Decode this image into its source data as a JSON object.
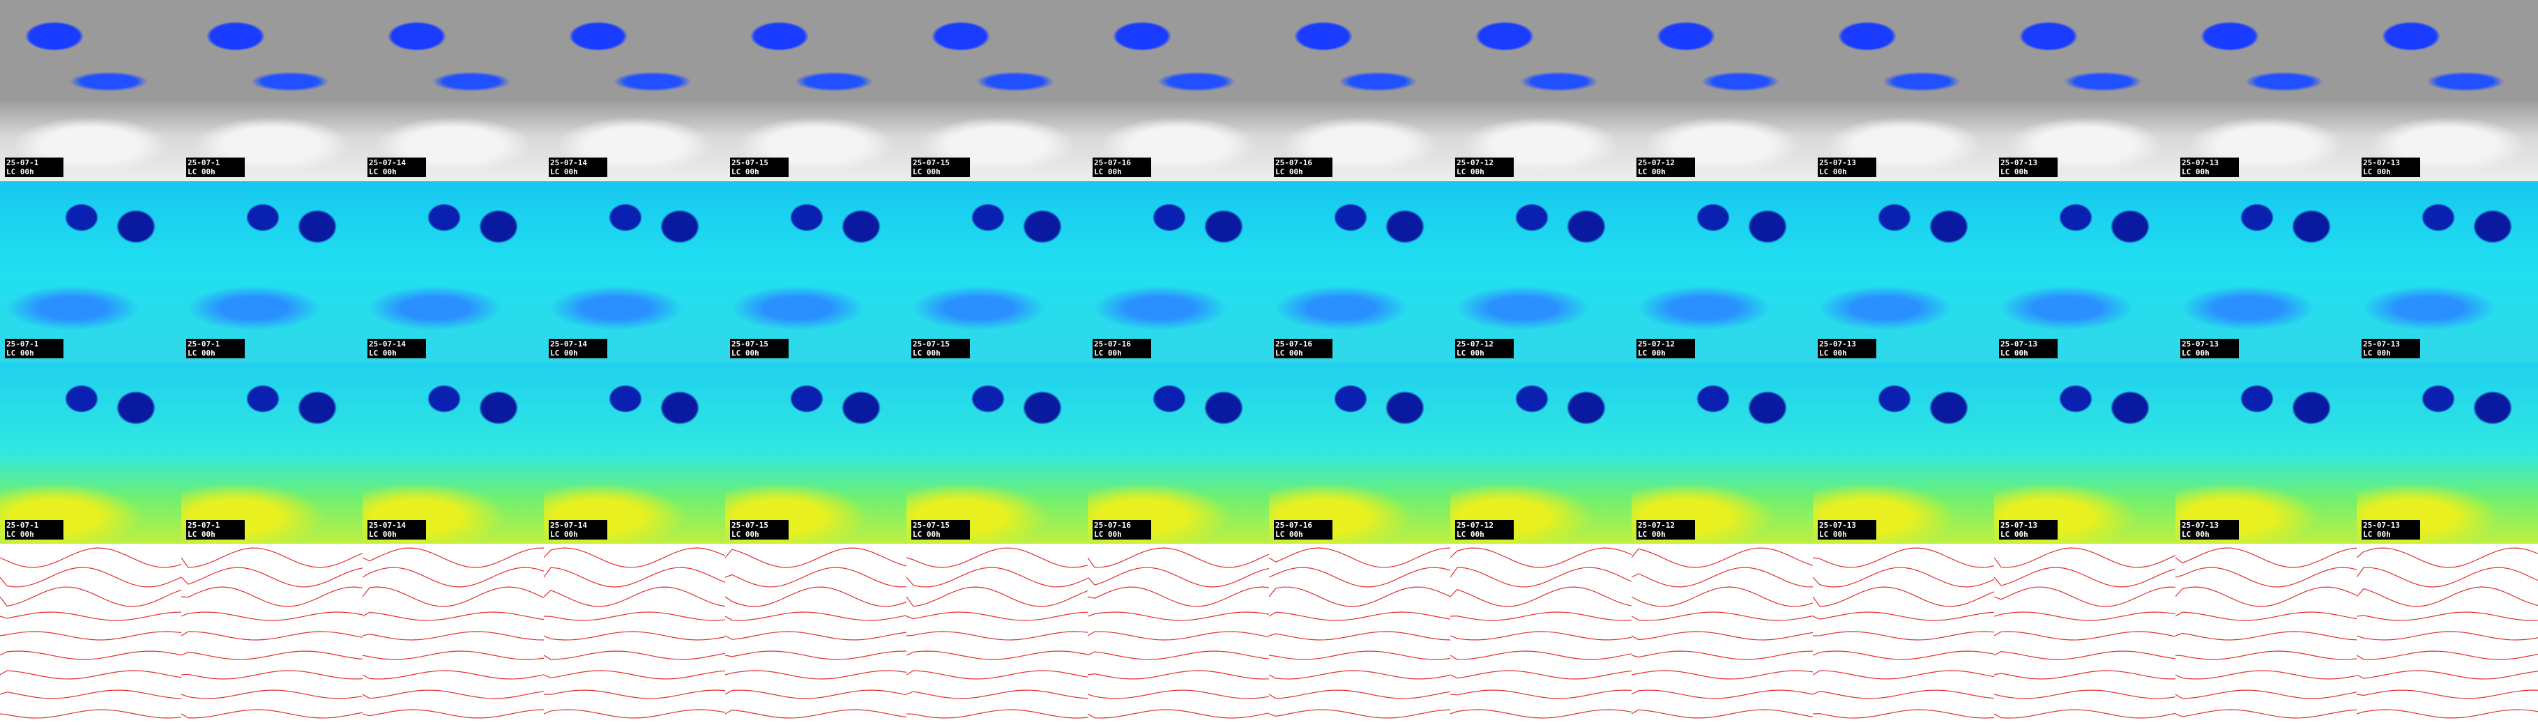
{
  "rows": [
    {
      "labels": [
        {
          "date": "25-07-1",
          "run": "LC 00h"
        },
        {
          "date": "25-07-1",
          "run": "LC 00h"
        },
        {
          "date": "25-07-14",
          "run": "LC 00h"
        },
        {
          "date": "25-07-14",
          "run": "LC 00h"
        },
        {
          "date": "25-07-15",
          "run": "LC 00h"
        },
        {
          "date": "25-07-15",
          "run": "LC 00h"
        },
        {
          "date": "25-07-16",
          "run": "LC 00h"
        },
        {
          "date": "25-07-16",
          "run": "LC 00h"
        },
        {
          "date": "25-07-12",
          "run": "LC 00h"
        },
        {
          "date": "25-07-12",
          "run": "LC 00h"
        },
        {
          "date": "25-07-13",
          "run": "LC 00h"
        },
        {
          "date": "25-07-13",
          "run": "LC 00h"
        },
        {
          "date": "25-07-13",
          "run": "LC 00h"
        },
        {
          "date": "25-07-13",
          "run": "LC 00h"
        }
      ]
    },
    {
      "labels": [
        {
          "date": "25-07-1",
          "run": "LC 00h"
        },
        {
          "date": "25-07-1",
          "run": "LC 00h"
        },
        {
          "date": "25-07-14",
          "run": "LC 00h"
        },
        {
          "date": "25-07-14",
          "run": "LC 00h"
        },
        {
          "date": "25-07-15",
          "run": "LC 00h"
        },
        {
          "date": "25-07-15",
          "run": "LC 00h"
        },
        {
          "date": "25-07-16",
          "run": "LC 00h"
        },
        {
          "date": "25-07-16",
          "run": "LC 00h"
        },
        {
          "date": "25-07-12",
          "run": "LC 00h"
        },
        {
          "date": "25-07-12",
          "run": "LC 00h"
        },
        {
          "date": "25-07-13",
          "run": "LC 00h"
        },
        {
          "date": "25-07-13",
          "run": "LC 00h"
        },
        {
          "date": "25-07-13",
          "run": "LC 00h"
        },
        {
          "date": "25-07-13",
          "run": "LC 00h"
        }
      ]
    },
    {
      "labels": [
        {
          "date": "25-07-1",
          "run": "LC 00h"
        },
        {
          "date": "25-07-1",
          "run": "LC 00h"
        },
        {
          "date": "25-07-14",
          "run": "LC 00h"
        },
        {
          "date": "25-07-14",
          "run": "LC 00h"
        },
        {
          "date": "25-07-15",
          "run": "LC 00h"
        },
        {
          "date": "25-07-15",
          "run": "LC 00h"
        },
        {
          "date": "25-07-16",
          "run": "LC 00h"
        },
        {
          "date": "25-07-16",
          "run": "LC 00h"
        },
        {
          "date": "25-07-12",
          "run": "LC 00h"
        },
        {
          "date": "25-07-12",
          "run": "LC 00h"
        },
        {
          "date": "25-07-13",
          "run": "LC 00h"
        },
        {
          "date": "25-07-13",
          "run": "LC 00h"
        },
        {
          "date": "25-07-13",
          "run": "LC 00h"
        },
        {
          "date": "25-07-13",
          "run": "LC 00h"
        }
      ]
    }
  ]
}
